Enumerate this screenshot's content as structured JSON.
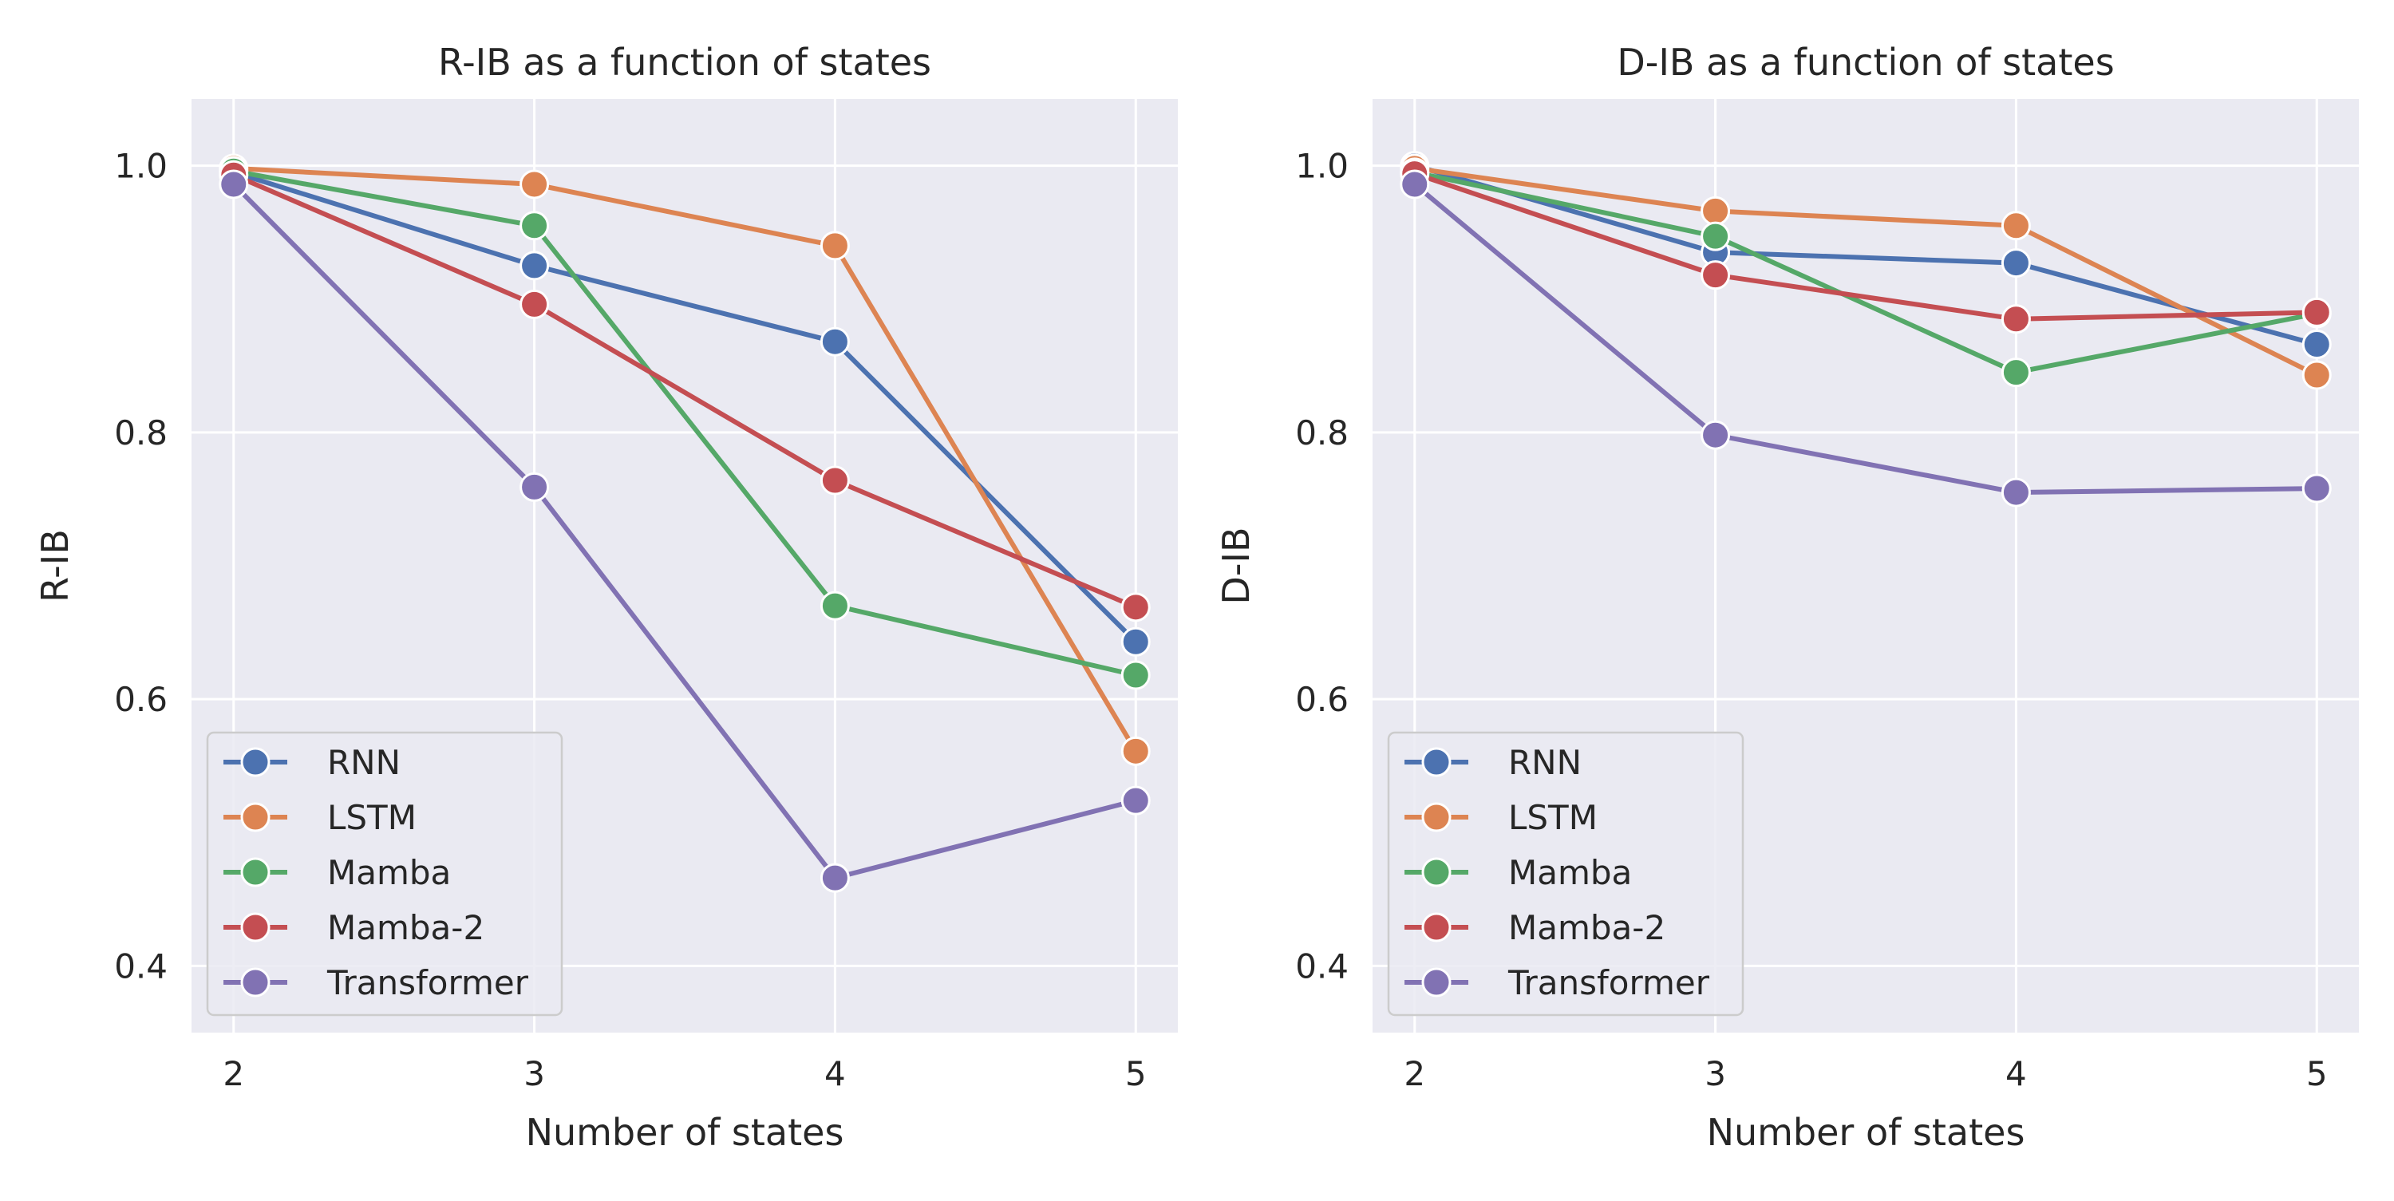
{
  "chart_data": [
    {
      "type": "line",
      "title": "R-IB as a function of states",
      "xlabel": "Number of states",
      "ylabel": "R-IB",
      "x": [
        2,
        3,
        4,
        5
      ],
      "x_ticks": [
        "2",
        "3",
        "4",
        "5"
      ],
      "y_ticks": [
        "0.4",
        "0.6",
        "0.8",
        "1.0"
      ],
      "xlim": [
        1.86,
        5.14
      ],
      "ylim": [
        0.35,
        1.05
      ],
      "grid": true,
      "legend_position": "lower-left",
      "series": [
        {
          "name": "RNN",
          "color": "#4c72b0",
          "values": [
            0.995,
            0.925,
            0.868,
            0.643
          ]
        },
        {
          "name": "LSTM",
          "color": "#dd8452",
          "values": [
            0.998,
            0.986,
            0.94,
            0.561
          ]
        },
        {
          "name": "Mamba",
          "color": "#55a868",
          "values": [
            0.996,
            0.955,
            0.67,
            0.618
          ]
        },
        {
          "name": "Mamba-2",
          "color": "#c44e52",
          "values": [
            0.993,
            0.896,
            0.764,
            0.669
          ]
        },
        {
          "name": "Transformer",
          "color": "#8172b3",
          "values": [
            0.986,
            0.759,
            0.466,
            0.524
          ]
        }
      ]
    },
    {
      "type": "line",
      "title": "D-IB as a function of states",
      "xlabel": "Number of states",
      "ylabel": "D-IB",
      "x": [
        2,
        3,
        4,
        5
      ],
      "x_ticks": [
        "2",
        "3",
        "4",
        "5"
      ],
      "y_ticks": [
        "0.4",
        "0.6",
        "0.8",
        "1.0"
      ],
      "xlim": [
        1.86,
        5.14
      ],
      "ylim": [
        0.35,
        1.05
      ],
      "grid": true,
      "legend_position": "lower-left",
      "series": [
        {
          "name": "RNN",
          "color": "#4c72b0",
          "values": [
            1.0,
            0.935,
            0.927,
            0.866
          ]
        },
        {
          "name": "LSTM",
          "color": "#dd8452",
          "values": [
            0.998,
            0.966,
            0.955,
            0.843
          ]
        },
        {
          "name": "Mamba",
          "color": "#55a868",
          "values": [
            0.995,
            0.947,
            0.845,
            0.889
          ]
        },
        {
          "name": "Mamba-2",
          "color": "#c44e52",
          "values": [
            0.994,
            0.918,
            0.885,
            0.89
          ]
        },
        {
          "name": "Transformer",
          "color": "#8172b3",
          "values": [
            0.986,
            0.798,
            0.755,
            0.758
          ]
        }
      ]
    }
  ],
  "style": {
    "axes_background": "#eaeaf2",
    "grid_color": "#ffffff",
    "text_color": "#262626",
    "legend_background": "#eaeaf2",
    "legend_border": "#cccccc"
  }
}
